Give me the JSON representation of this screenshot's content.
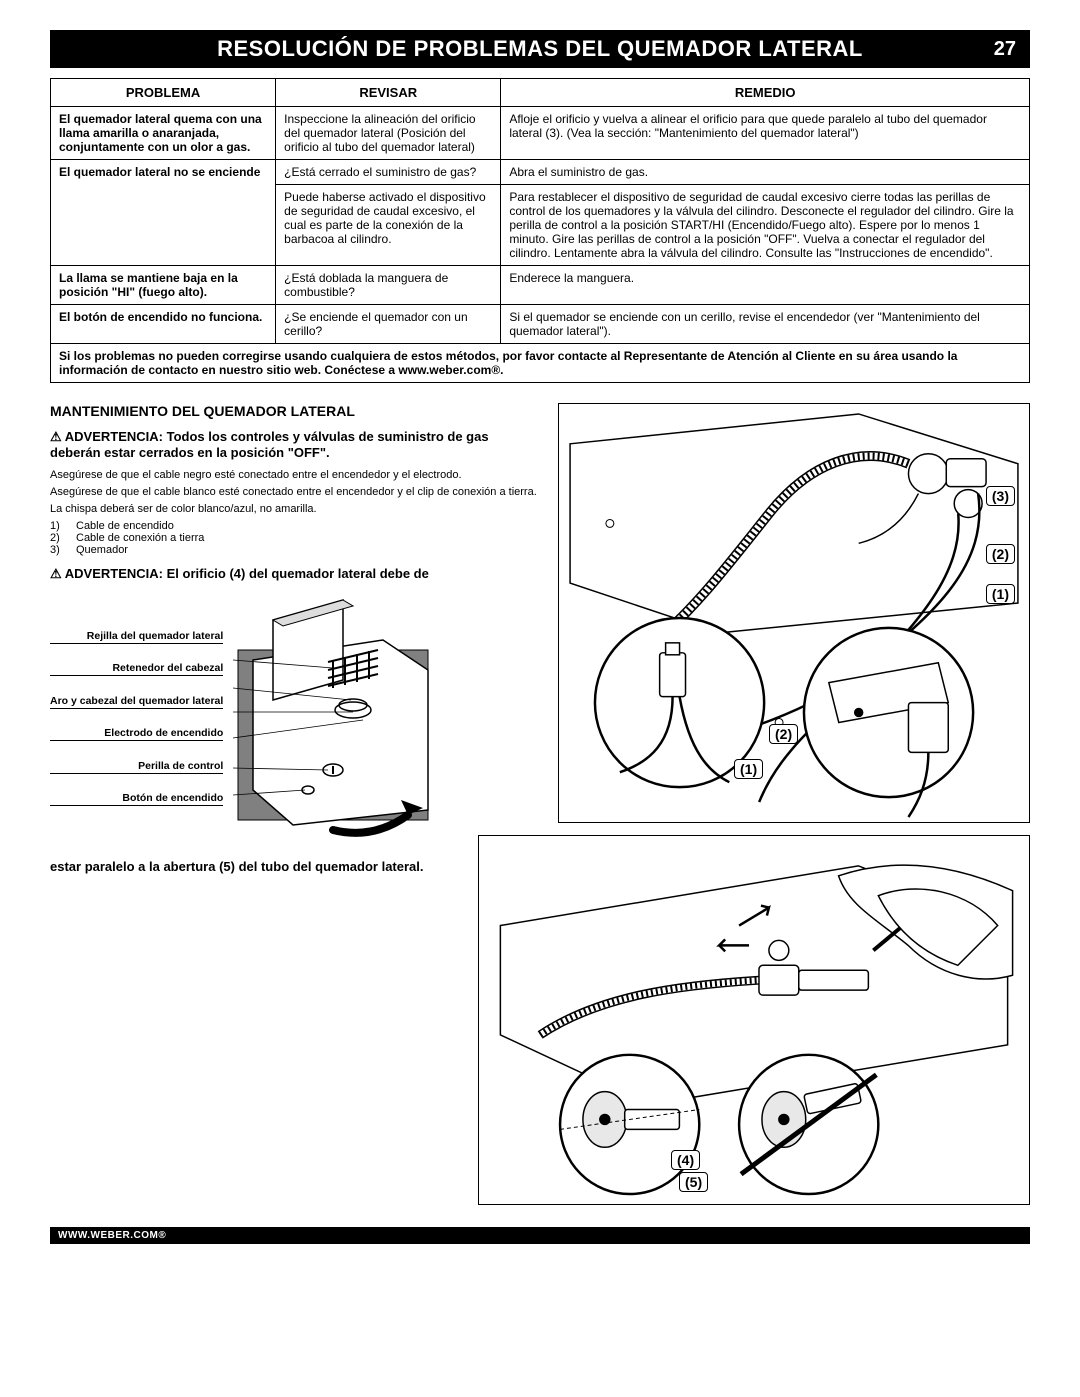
{
  "header": {
    "title": "RESOLUCIÓN DE PROBLEMAS DEL QUEMADOR LATERAL",
    "page": "27"
  },
  "table": {
    "headers": [
      "PROBLEMA",
      "REVISAR",
      "REMEDIO"
    ],
    "rows": [
      {
        "problema": "El quemador lateral quema con una llama amarilla o anaranjada, conjuntamente con un olor a gas.",
        "problema_bold": true,
        "revisar": "Inspeccione la alineación del orificio del quemador lateral (Posición del orificio al tubo del quemador lateral)",
        "remedio": "Afloje el orificio y vuelva a alinear el orificio para que quede paralelo al tubo del quemador lateral (3). (Vea la sección: \"Mantenimiento del quemador lateral\")"
      },
      {
        "problema": "El quemador lateral no se enciende",
        "problema_bold": true,
        "revisar": "¿Está cerrado el suministro de gas?",
        "remedio": "Abra el suministro de gas."
      },
      {
        "problema": "",
        "revisar": "Puede haberse activado el dispositivo de seguridad de caudal excesivo, el cual es parte de la conexión de la barbacoa al cilindro.",
        "remedio": "Para restablecer el dispositivo de seguridad de caudal excesivo cierre todas las perillas de control de los quemadores y la válvula del cilindro. Desconecte el regulador del cilindro. Gire la perilla de control a la posición START/HI (Encendido/Fuego alto). Espere por lo menos 1 minuto. Gire las perillas de control a la posición \"OFF\". Vuelva a conectar el regulador del cilindro. Lentamente abra la válvula del cilindro. Consulte las \"Instrucciones de encendido\"."
      },
      {
        "problema": "La llama se mantiene baja en la posición \"HI\" (fuego alto).",
        "problema_bold": true,
        "revisar": "¿Está doblada la manguera de combustible?",
        "remedio": "Enderece la manguera."
      },
      {
        "problema": "El botón de encendido no funciona.",
        "problema_bold": true,
        "revisar": "¿Se enciende el quemador con un cerillo?",
        "remedio": "Si el quemador se enciende con un cerillo, revise el encendedor (ver \"Mantenimiento del quemador lateral\")."
      }
    ],
    "footer": "Si los problemas no pueden corregirse usando cualquiera de estos métodos, por favor contacte al Representante de Atención al Cliente en su área usando la información de contacto en nuestro sitio web. Conéctese a www.weber.com®."
  },
  "maintenance": {
    "title": "MANTENIMIENTO DEL QUEMADOR LATERAL",
    "warn1_prefix": "⚠ ADVERTENCIA: Todos los controles y válvulas de suministro de gas deberán estar cerrados en la posición \"OFF\".",
    "p1": "Asegúrese de que el cable negro esté conectado entre el encendedor y el electrodo.",
    "p2": "Asegúrese de que el cable blanco esté conectado entre el encendedor y el clip de conexión a tierra.",
    "p3": "La chispa deberá ser de color blanco/azul, no amarilla.",
    "list": [
      {
        "n": "1)",
        "t": "Cable de encendido"
      },
      {
        "n": "2)",
        "t": "Cable de conexión a tierra"
      },
      {
        "n": "3)",
        "t": "Quemador"
      }
    ],
    "warn2": "⚠ ADVERTENCIA: El orificio (4) del quemador lateral debe de",
    "partlabels": [
      "Rejilla del quemador lateral",
      "Retenedor del cabezal",
      "Aro y cabezal del quemador lateral",
      "Electrodo de encendido",
      "Perilla de control",
      "Botón de encendido"
    ],
    "cont": "estar paralelo a la abertura (5) del tubo del quemador lateral."
  },
  "callouts": {
    "top": [
      "(3)",
      "(2)",
      "(1)",
      "(2)",
      "(1)"
    ],
    "bottom": [
      "(4)",
      "(5)"
    ]
  },
  "footer": "WWW.WEBER.COM®"
}
